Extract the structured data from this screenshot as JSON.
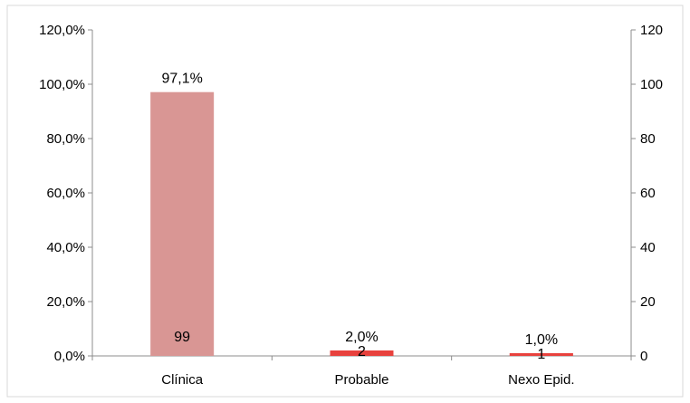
{
  "chart_data": {
    "type": "bar",
    "categories": [
      "Clínica",
      "Probable",
      "Nexo Epid."
    ],
    "series": [
      {
        "axis": "left",
        "values": [
          97.1,
          2.0,
          1.0
        ],
        "labels": [
          "97,1%",
          "2,0%",
          "1,0%"
        ],
        "color": "#d99694"
      },
      {
        "axis": "right",
        "values": [
          99,
          2,
          1
        ],
        "labels": [
          "99",
          "2",
          "1"
        ],
        "color": "#e8413d"
      }
    ],
    "left_axis": {
      "ylim": [
        0,
        120
      ],
      "ticks": [
        0,
        20,
        40,
        60,
        80,
        100,
        120
      ],
      "tick_labels": [
        "0,0%",
        "20,0%",
        "40,0%",
        "60,0%",
        "80,0%",
        "100,0%",
        "120,0%"
      ]
    },
    "right_axis": {
      "ylim": [
        0,
        120
      ],
      "ticks": [
        0,
        20,
        40,
        60,
        80,
        100,
        120
      ],
      "tick_labels": [
        "0",
        "20",
        "40",
        "60",
        "80",
        "100",
        "120"
      ]
    },
    "grid": false,
    "legend": "none",
    "title": "",
    "xlabel": "",
    "ylabel": ""
  }
}
